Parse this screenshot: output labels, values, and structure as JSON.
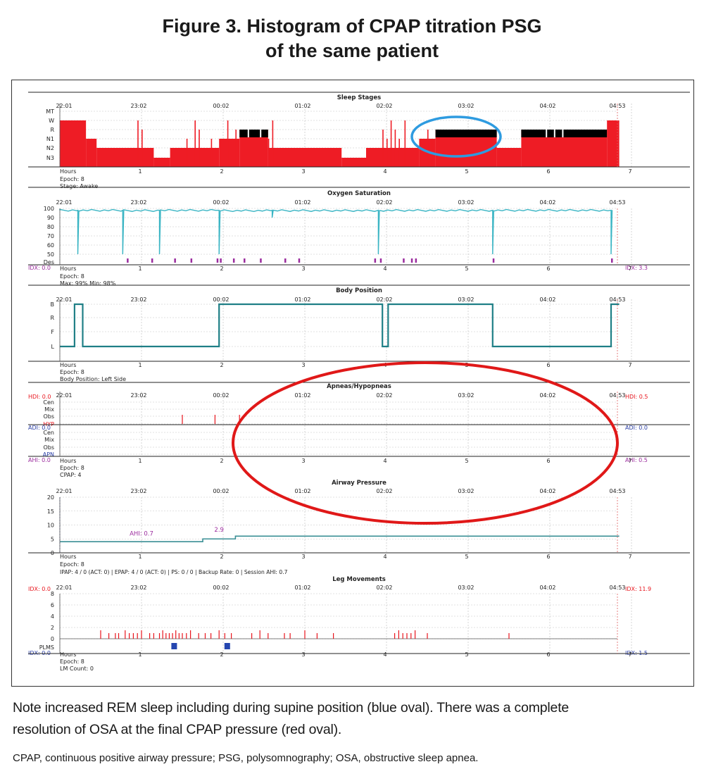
{
  "figure": {
    "title_line1": "Figure 3. Histogram of CPAP titration PSG",
    "title_line2": "of the same patient",
    "caption_line1": "Note increased REM sleep including during supine position (blue oval). There was a complete",
    "caption_line2": "resolution of OSA at the final CPAP pressure (red oval).",
    "abbreviations": "CPAP, continuous positive airway pressure; PSG, polysomnography; OSA, obstructive sleep apnea."
  },
  "colors": {
    "sleep": "#ee1c25",
    "rem": "#000000",
    "spo2": "#3bb5c4",
    "position": "#1f7f86",
    "pressure": "#3a8f95",
    "event_red": "#e8151d",
    "purple": "#9b2c9e",
    "blue_label": "#2b3fa6",
    "blue_oval": "#2e9be0",
    "red_oval": "#e01818",
    "plm": "#2546b0"
  },
  "time_labels": [
    "22:01",
    "23:02",
    "00:02",
    "01:02",
    "02:02",
    "03:02",
    "04:02",
    "04:53"
  ],
  "hours_axis": {
    "label": "Hours",
    "ticks": [
      "1",
      "2",
      "3",
      "4",
      "5",
      "6",
      "7"
    ]
  },
  "chart_data": [
    {
      "type": "step",
      "title": "Sleep Stages",
      "y_categories": [
        "MT",
        "W",
        "R",
        "N1",
        "N2",
        "N3"
      ],
      "x_unit": "hours",
      "segments": [
        {
          "from": 0,
          "to": 0.32,
          "stage": "W"
        },
        {
          "from": 0.32,
          "to": 0.45,
          "stage": "N1"
        },
        {
          "from": 0.45,
          "to": 1.15,
          "stage": "N2"
        },
        {
          "from": 1.15,
          "to": 1.35,
          "stage": "N3"
        },
        {
          "from": 1.35,
          "to": 1.95,
          "stage": "N2"
        },
        {
          "from": 1.95,
          "to": 2.2,
          "stage": "N1"
        },
        {
          "from": 2.2,
          "to": 2.55,
          "stage": "R"
        },
        {
          "from": 2.55,
          "to": 3.45,
          "stage": "N2"
        },
        {
          "from": 3.45,
          "to": 3.75,
          "stage": "N3"
        },
        {
          "from": 3.75,
          "to": 4.4,
          "stage": "N2"
        },
        {
          "from": 4.4,
          "to": 4.6,
          "stage": "N1"
        },
        {
          "from": 4.6,
          "to": 5.35,
          "stage": "R"
        },
        {
          "from": 5.35,
          "to": 5.65,
          "stage": "N2"
        },
        {
          "from": 5.65,
          "to": 6.7,
          "stage": "R"
        },
        {
          "from": 6.7,
          "to": 6.85,
          "stage": "W"
        }
      ],
      "footer": {
        "epoch": "Epoch: 8",
        "detail": "Stage: Awake"
      }
    },
    {
      "type": "line",
      "title": "Oxygen Saturation",
      "y_ticks": [
        "100",
        "90",
        "80",
        "70",
        "60",
        "50"
      ],
      "ylim": [
        50,
        100
      ],
      "baseline": 98,
      "dips": [
        {
          "x": 0.22,
          "y": 50
        },
        {
          "x": 0.77,
          "y": 50
        },
        {
          "x": 1.22,
          "y": 50
        },
        {
          "x": 1.95,
          "y": 50
        },
        {
          "x": 2.6,
          "y": 90
        },
        {
          "x": 3.9,
          "y": 50
        },
        {
          "x": 5.3,
          "y": 50
        },
        {
          "x": 6.75,
          "y": 50
        }
      ],
      "des_label": "Des",
      "des_marks": [
        0.82,
        1.12,
        1.4,
        1.6,
        1.92,
        1.96,
        2.12,
        2.25,
        2.45,
        2.75,
        2.92,
        3.85,
        3.92,
        4.2,
        4.3,
        4.35,
        5.3,
        6.75
      ],
      "idx_left": "IDX: 0.0",
      "idx_right": "IDX: 3.3",
      "footer": {
        "epoch": "Epoch: 8",
        "detail": "Max: 99% Min: 98%"
      }
    },
    {
      "type": "step",
      "title": "Body Position",
      "y_categories": [
        "B",
        "R",
        "F",
        "L"
      ],
      "segments": [
        {
          "from": 0,
          "to": 0.18,
          "pos": "L"
        },
        {
          "from": 0.18,
          "to": 0.28,
          "pos": "B"
        },
        {
          "from": 0.28,
          "to": 1.95,
          "pos": "L"
        },
        {
          "from": 1.95,
          "to": 3.95,
          "pos": "B"
        },
        {
          "from": 3.95,
          "to": 4.02,
          "pos": "L"
        },
        {
          "from": 4.02,
          "to": 5.3,
          "pos": "B"
        },
        {
          "from": 5.3,
          "to": 6.75,
          "pos": "L"
        },
        {
          "from": 6.75,
          "to": 6.85,
          "pos": "B"
        }
      ],
      "footer": {
        "epoch": "Epoch: 8",
        "detail": "Body Position: Left Side"
      }
    },
    {
      "type": "events",
      "title": "Apneas/Hypopneas",
      "upper_labels": [
        "Cen",
        "Mix",
        "Obs",
        "HYP"
      ],
      "lower_labels": [
        "Cen",
        "Mix",
        "Obs",
        "APN"
      ],
      "hyp_events": [
        1.5,
        1.9,
        2.2
      ],
      "hdi_left": "HDI: 0.0",
      "hdi_right": "HDI: 0.5",
      "adi_left": "ADI: 0.0",
      "adi_right": "ADI: 0.0",
      "ahi_left": "AHI: 0.0",
      "ahi_right": "AHI: 0.5",
      "footer": {
        "epoch": "Epoch: 8",
        "detail": "CPAP:  4"
      }
    },
    {
      "type": "step",
      "title": "Airway Pressure",
      "y_ticks": [
        "20",
        "15",
        "10",
        "5",
        "0"
      ],
      "ylim": [
        0,
        20
      ],
      "segments": [
        {
          "from": 0,
          "to": 1.75,
          "value": 4
        },
        {
          "from": 1.75,
          "to": 2.15,
          "value": 5
        },
        {
          "from": 2.15,
          "to": 6.85,
          "value": 6
        }
      ],
      "annotations": [
        {
          "x": 1.0,
          "y": 5.5,
          "text": "AHI: 0.7"
        },
        {
          "x": 1.95,
          "y": 6.8,
          "text": "2.9"
        }
      ],
      "footer": {
        "epoch": "Epoch: 8",
        "detail": "IPAP: 4 / 0 (ACT: 0) | EPAP: 4 / 0 (ACT: 0) | PS: 0 / 0 | Backup Rate: 0 | Session AHI: 0.7"
      }
    },
    {
      "type": "bar",
      "title": "Leg Movements",
      "y_ticks": [
        "8",
        "6",
        "4",
        "2",
        "0"
      ],
      "ylim": [
        0,
        8
      ],
      "movements": [
        0.5,
        0.6,
        0.68,
        0.72,
        0.8,
        0.85,
        0.9,
        0.95,
        1.0,
        1.1,
        1.15,
        1.22,
        1.26,
        1.3,
        1.34,
        1.38,
        1.42,
        1.46,
        1.5,
        1.55,
        1.6,
        1.7,
        1.78,
        1.85,
        1.95,
        2.02,
        2.1,
        2.35,
        2.45,
        2.55,
        2.75,
        2.82,
        3.0,
        3.15,
        3.35,
        4.1,
        4.15,
        4.2,
        4.25,
        4.3,
        4.35,
        4.5,
        5.5
      ],
      "plms_label": "PLMS",
      "plms_marks": [
        1.4,
        2.05
      ],
      "idx_left": "IDX: 0.0",
      "idx_right": "IDX: 11.9",
      "idx2_left": "IDX: 0.0",
      "idx2_right": "IDX: 1.5",
      "footer": {
        "epoch": "Epoch: 8",
        "detail": "LM Count: 0"
      }
    }
  ]
}
